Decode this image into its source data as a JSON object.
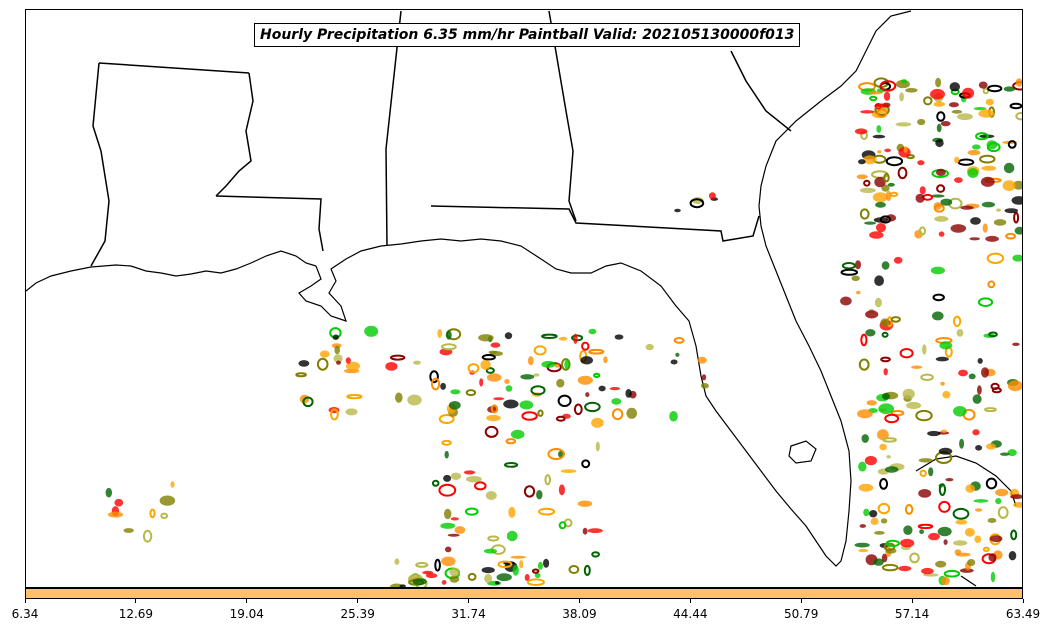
{
  "title": "Hourly Precipitation 6.35 mm/hr Paintball Valid: 202105130000f013",
  "colorbar": {
    "color": "#ffc266",
    "ticks": [
      "6.34",
      "12.69",
      "19.04",
      "25.39",
      "31.74",
      "38.09",
      "44.44",
      "50.79",
      "57.14",
      "63.49"
    ]
  },
  "map": {
    "region": "Gulf of Mexico and southeastern United States",
    "coastline_color": "#000000",
    "background": "#ffffff",
    "paintball_colors": [
      "#000000",
      "#8b0000",
      "#ff0000",
      "#ff8c00",
      "#ffa500",
      "#808000",
      "#006400",
      "#00cc00",
      "#b8b84a"
    ]
  }
}
